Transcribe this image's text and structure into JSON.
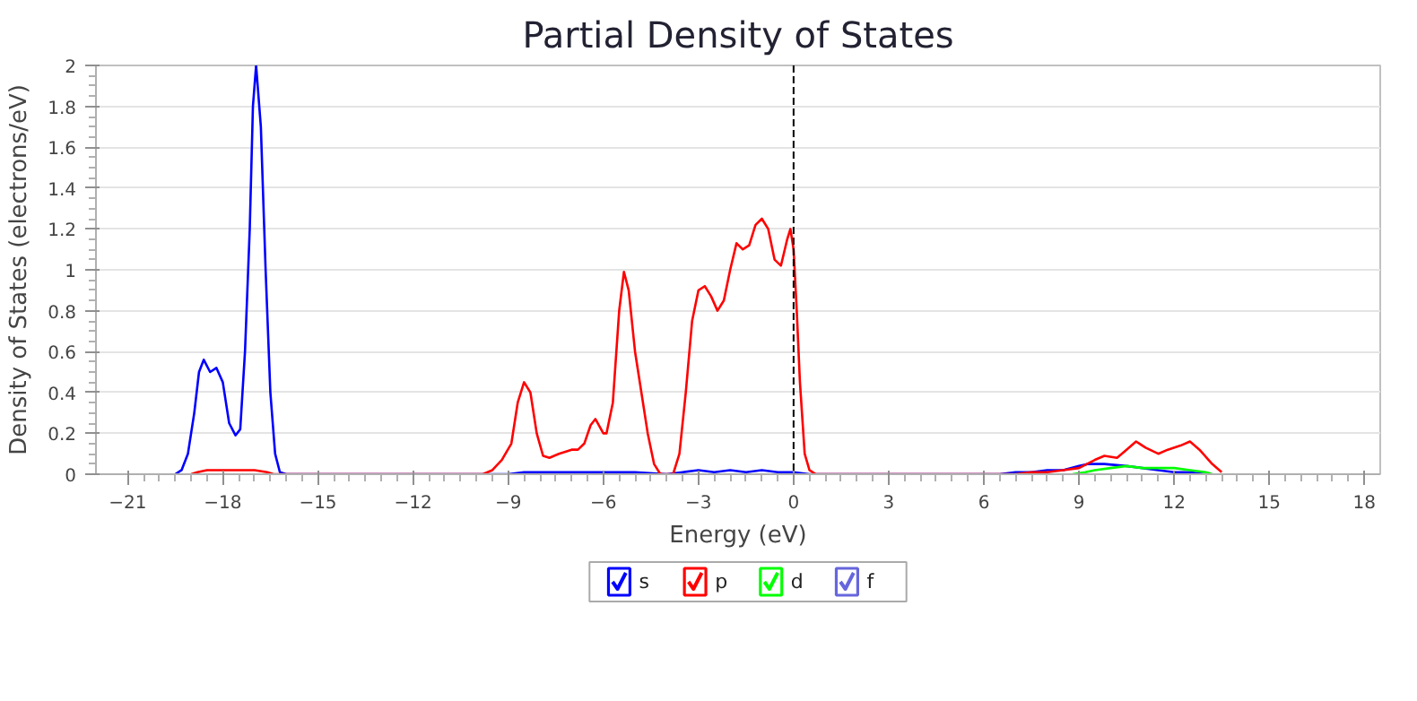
{
  "chart_data": {
    "type": "line",
    "title": "Partial Density of States",
    "xlabel": "Energy (eV)",
    "ylabel": "Density of States (electrons/eV)",
    "xlim": [
      -22,
      18.5
    ],
    "xticks": [
      -21,
      -18,
      -15,
      -12,
      -9,
      -6,
      -3,
      0,
      3,
      6,
      9,
      12,
      15,
      18
    ],
    "ylim": [
      0,
      2
    ],
    "yticks": [
      0,
      0.2,
      0.4,
      0.6,
      0.8,
      1,
      1.2,
      1.4,
      1.6,
      1.8,
      2
    ],
    "grid": "y",
    "legend": "bottom",
    "marker": "none",
    "line_style": "solid",
    "ref_lines": [
      {
        "axis": "x",
        "value": 0,
        "color": "#000000",
        "line_style": "dashed"
      }
    ],
    "series": [
      {
        "name": "s",
        "color": "#0000ff",
        "x": [
          -19.5,
          -19.3,
          -19.1,
          -18.9,
          -18.75,
          -18.6,
          -18.4,
          -18.2,
          -18.0,
          -17.8,
          -17.6,
          -17.45,
          -17.3,
          -17.15,
          -17.05,
          -16.95,
          -16.8,
          -16.65,
          -16.5,
          -16.35,
          -16.2,
          -16.0,
          -9,
          -8.5,
          -7.5,
          -5,
          -4,
          -3.5,
          -3,
          -2.5,
          -2,
          -1.5,
          -1,
          -0.5,
          0,
          0.5,
          6.5,
          7,
          7.5,
          8,
          8.5,
          9,
          9.3,
          9.8,
          10.5,
          11,
          11.5,
          12,
          12.5,
          13
        ],
        "values": [
          0,
          0.02,
          0.1,
          0.3,
          0.5,
          0.56,
          0.5,
          0.52,
          0.45,
          0.25,
          0.19,
          0.22,
          0.6,
          1.2,
          1.8,
          2.0,
          1.7,
          1.0,
          0.4,
          0.1,
          0.01,
          0,
          0,
          0.01,
          0.01,
          0.01,
          0,
          0.01,
          0.02,
          0.01,
          0.02,
          0.01,
          0.02,
          0.01,
          0.01,
          0,
          0,
          0.01,
          0.01,
          0.02,
          0.02,
          0.04,
          0.05,
          0.05,
          0.04,
          0.03,
          0.02,
          0.01,
          0.01,
          0
        ]
      },
      {
        "name": "p",
        "color": "#ff0000",
        "x": [
          -19,
          -18.8,
          -18.5,
          -18,
          -17.5,
          -17,
          -16.6,
          -16.4,
          -9.8,
          -9.5,
          -9.2,
          -8.9,
          -8.7,
          -8.5,
          -8.3,
          -8.1,
          -7.9,
          -7.7,
          -7.4,
          -7.0,
          -6.8,
          -6.6,
          -6.4,
          -6.25,
          -6.0,
          -5.9,
          -5.7,
          -5.5,
          -5.35,
          -5.2,
          -5.0,
          -4.8,
          -4.6,
          -4.4,
          -4.2,
          -3.8,
          -3.6,
          -3.4,
          -3.2,
          -3.0,
          -2.8,
          -2.6,
          -2.4,
          -2.2,
          -2.0,
          -1.8,
          -1.6,
          -1.4,
          -1.2,
          -1.0,
          -0.8,
          -0.6,
          -0.4,
          -0.2,
          -0.1,
          0.0,
          0.1,
          0.2,
          0.35,
          0.5,
          0.7,
          7,
          7.5,
          8,
          8.5,
          9,
          9.5,
          9.8,
          10.2,
          10.5,
          10.8,
          11.1,
          11.5,
          11.8,
          12.2,
          12.5,
          12.8,
          13.2,
          13.5
        ],
        "values": [
          0,
          0.01,
          0.02,
          0.02,
          0.02,
          0.02,
          0.01,
          0,
          0,
          0.02,
          0.07,
          0.15,
          0.35,
          0.45,
          0.4,
          0.2,
          0.09,
          0.08,
          0.1,
          0.12,
          0.12,
          0.15,
          0.24,
          0.27,
          0.2,
          0.2,
          0.35,
          0.8,
          0.99,
          0.9,
          0.6,
          0.4,
          0.2,
          0.05,
          0,
          0,
          0.1,
          0.4,
          0.75,
          0.9,
          0.92,
          0.87,
          0.8,
          0.85,
          1.0,
          1.13,
          1.1,
          1.12,
          1.22,
          1.25,
          1.2,
          1.05,
          1.02,
          1.15,
          1.2,
          1.1,
          0.8,
          0.45,
          0.1,
          0.02,
          0,
          0,
          0.01,
          0.01,
          0.02,
          0.03,
          0.07,
          0.09,
          0.08,
          0.12,
          0.16,
          0.13,
          0.1,
          0.12,
          0.14,
          0.16,
          0.12,
          0.05,
          0.01
        ]
      },
      {
        "name": "d",
        "color": "#00ff00",
        "x": [
          8.8,
          9.2,
          9.5,
          10,
          10.5,
          11,
          12,
          12.5,
          13,
          13.2
        ],
        "values": [
          0,
          0.01,
          0.02,
          0.03,
          0.04,
          0.03,
          0.03,
          0.02,
          0.01,
          0
        ]
      },
      {
        "name": "f",
        "color": "#6666dd"
      }
    ]
  }
}
